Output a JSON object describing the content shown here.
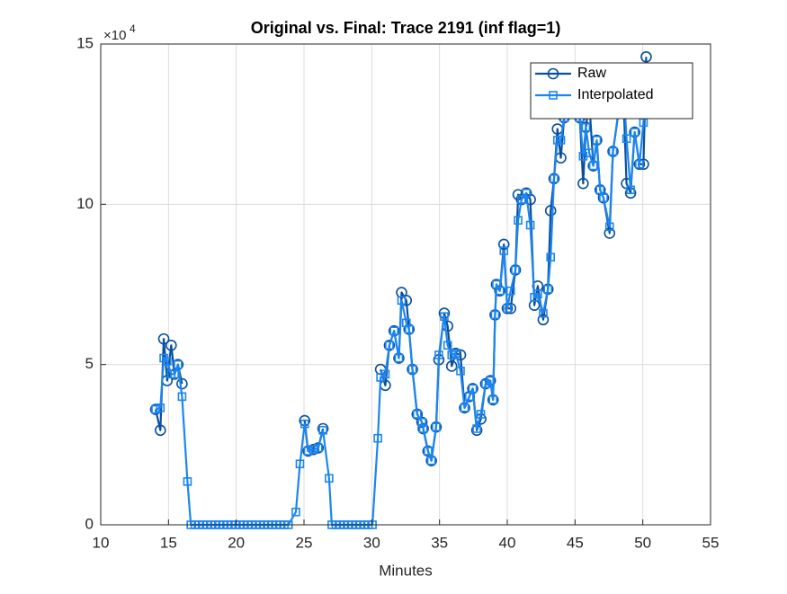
{
  "chart_data": {
    "type": "line",
    "title": "Original vs. Final: Trace 2191 (inf flag=1)",
    "xlabel": "Minutes",
    "y_exponent_base": "×10",
    "y_exponent": "4",
    "x": [
      14.05,
      14.4,
      14.65,
      14.9,
      15.2,
      15.45,
      15.7,
      16.0,
      16.4,
      16.65,
      16.95,
      17.25,
      17.55,
      17.85,
      18.15,
      18.45,
      18.75,
      19.05,
      19.35,
      19.65,
      19.95,
      20.25,
      20.55,
      20.85,
      21.15,
      21.45,
      21.75,
      22.05,
      22.35,
      22.65,
      22.95,
      23.25,
      23.55,
      23.85,
      24.4,
      24.7,
      25.05,
      25.3,
      25.7,
      26.05,
      26.4,
      26.85,
      27.05,
      27.35,
      27.65,
      27.95,
      28.25,
      28.55,
      28.85,
      29.15,
      29.45,
      29.75,
      30.05,
      30.45,
      30.65,
      31.0,
      31.3,
      31.65,
      32.0,
      32.2,
      32.55,
      32.75,
      33.0,
      33.35,
      33.7,
      33.8,
      34.15,
      34.4,
      34.75,
      34.95,
      35.35,
      35.6,
      35.9,
      36.2,
      36.55,
      36.85,
      37.2,
      37.45,
      37.75,
      38.05,
      38.4,
      38.75,
      38.95,
      39.1,
      39.2,
      39.45,
      39.75,
      40.0,
      40.25,
      40.6,
      40.8,
      41.05,
      41.4,
      41.7,
      42.0,
      42.25,
      42.65,
      43.0,
      43.2,
      43.45,
      43.7,
      43.95,
      44.2,
      44.7,
      45.35,
      45.6,
      45.8,
      46.05,
      46.35,
      46.6,
      46.85,
      47.1,
      47.55,
      47.8,
      48.25,
      48.5,
      48.8,
      49.1,
      49.4,
      49.75,
      50.05,
      50.25
    ],
    "series": [
      {
        "name": "Raw",
        "color": "#0a4f9e",
        "marker": "circle",
        "values": [
          3.6,
          2.95,
          5.8,
          4.5,
          5.6,
          4.7,
          5.0,
          4.4,
          null,
          null,
          null,
          null,
          null,
          null,
          null,
          null,
          null,
          null,
          null,
          null,
          null,
          null,
          null,
          null,
          null,
          null,
          null,
          null,
          null,
          null,
          null,
          null,
          null,
          null,
          null,
          null,
          3.25,
          2.3,
          2.35,
          2.4,
          3.0,
          null,
          null,
          null,
          null,
          null,
          null,
          null,
          null,
          null,
          null,
          null,
          null,
          null,
          4.85,
          4.35,
          5.6,
          6.05,
          5.2,
          7.25,
          7.0,
          6.1,
          4.85,
          3.45,
          3.2,
          3.0,
          2.3,
          2.0,
          3.05,
          5.15,
          6.6,
          6.2,
          4.95,
          5.35,
          5.3,
          3.65,
          4.0,
          4.25,
          2.95,
          3.3,
          4.4,
          4.5,
          3.9,
          6.55,
          7.5,
          7.3,
          8.75,
          6.75,
          6.75,
          7.95,
          10.3,
          10.15,
          10.35,
          10.15,
          6.85,
          7.45,
          6.4,
          7.35,
          9.8,
          10.8,
          12.35,
          11.45,
          12.7,
          13.5,
          12.7,
          10.65,
          12.4,
          13.2,
          11.2,
          12.0,
          10.45,
          10.2,
          9.1,
          11.65,
          13.0,
          14.25,
          10.65,
          10.35,
          12.25,
          11.25,
          11.25,
          14.6
        ]
      },
      {
        "name": "Interpolated",
        "color": "#1c86f0",
        "marker": "square",
        "values": [
          3.6,
          3.65,
          5.2,
          5.1,
          4.7,
          4.7,
          5.0,
          4.0,
          1.35,
          0,
          0,
          0,
          0,
          0,
          0,
          0,
          0,
          0,
          0,
          0,
          0,
          0,
          0,
          0,
          0,
          0,
          0,
          0,
          0,
          0,
          0,
          0,
          0,
          0,
          0.4,
          1.9,
          3.15,
          2.3,
          2.35,
          2.4,
          2.95,
          1.45,
          0,
          0,
          0,
          0,
          0,
          0,
          0,
          0,
          0,
          0,
          0,
          2.7,
          4.6,
          4.7,
          5.6,
          6.05,
          5.2,
          7.0,
          6.3,
          6.1,
          4.85,
          3.45,
          3.2,
          3.0,
          2.3,
          2.0,
          3.05,
          5.3,
          6.5,
          5.6,
          5.3,
          5.35,
          4.8,
          3.65,
          4.0,
          4.25,
          3.0,
          3.45,
          4.4,
          4.5,
          3.9,
          6.55,
          7.5,
          7.3,
          8.55,
          6.75,
          7.3,
          7.95,
          9.5,
          10.15,
          10.35,
          9.35,
          7.1,
          7.2,
          6.6,
          7.35,
          8.35,
          10.8,
          12.0,
          12.0,
          12.7,
          13.5,
          12.7,
          11.5,
          12.4,
          11.6,
          11.2,
          12.0,
          10.45,
          10.2,
          9.3,
          11.65,
          13.0,
          14.25,
          12.05,
          10.45,
          12.25,
          11.25,
          12.55,
          13.3
        ]
      }
    ],
    "xlim": [
      10,
      55
    ],
    "xticks": [
      10,
      15,
      20,
      25,
      30,
      35,
      40,
      45,
      50,
      55
    ],
    "ylim": [
      0,
      15
    ],
    "yticks": [
      0,
      5,
      10,
      15
    ],
    "grid": true,
    "legend": "northeast"
  }
}
